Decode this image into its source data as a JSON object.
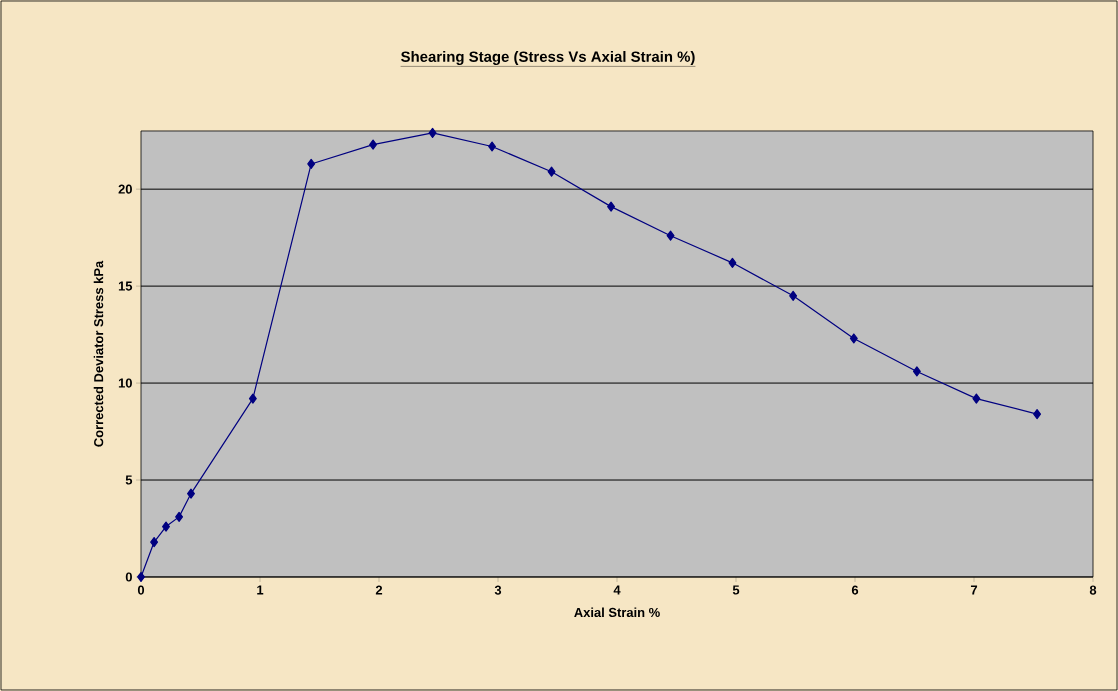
{
  "chart_data": {
    "type": "line",
    "title": "Shearing Stage (Stress Vs Axial Strain %)",
    "xlabel": "Axial Strain %",
    "ylabel": "Corrected Deviator Stress  kPa",
    "x": [
      0,
      0.11,
      0.21,
      0.32,
      0.42,
      0.94,
      1.43,
      1.95,
      2.45,
      2.95,
      3.45,
      3.95,
      4.45,
      4.97,
      5.48,
      5.99,
      6.52,
      7.02,
      7.53
    ],
    "series": [
      {
        "color": "#000080",
        "values": [
          0,
          1.8,
          2.6,
          3.1,
          4.3,
          9.2,
          21.3,
          22.3,
          22.9,
          22.2,
          20.9,
          19.1,
          17.6,
          16.2,
          14.5,
          12.3,
          10.6,
          9.2,
          8.4
        ]
      }
    ],
    "xlim": [
      0,
      8
    ],
    "ylim": [
      0,
      23
    ],
    "xticks": [
      0,
      1,
      2,
      3,
      4,
      5,
      6,
      7,
      8
    ],
    "yticks": [
      0,
      5,
      10,
      15,
      20
    ],
    "grid": "y",
    "marker": "diamond",
    "line_style": "solid"
  }
}
